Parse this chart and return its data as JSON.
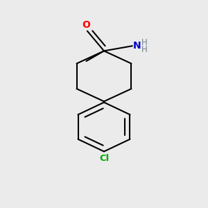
{
  "background_color": "#ebebeb",
  "bond_color": "#000000",
  "O_color": "#ff0000",
  "N_color": "#0000cc",
  "Cl_color": "#00aa00",
  "H_color": "#708090",
  "line_width": 1.5,
  "fig_width": 3.0,
  "fig_height": 3.0,
  "dpi": 100,
  "xlim": [
    -0.45,
    0.45
  ],
  "ylim": [
    -0.52,
    0.58
  ]
}
